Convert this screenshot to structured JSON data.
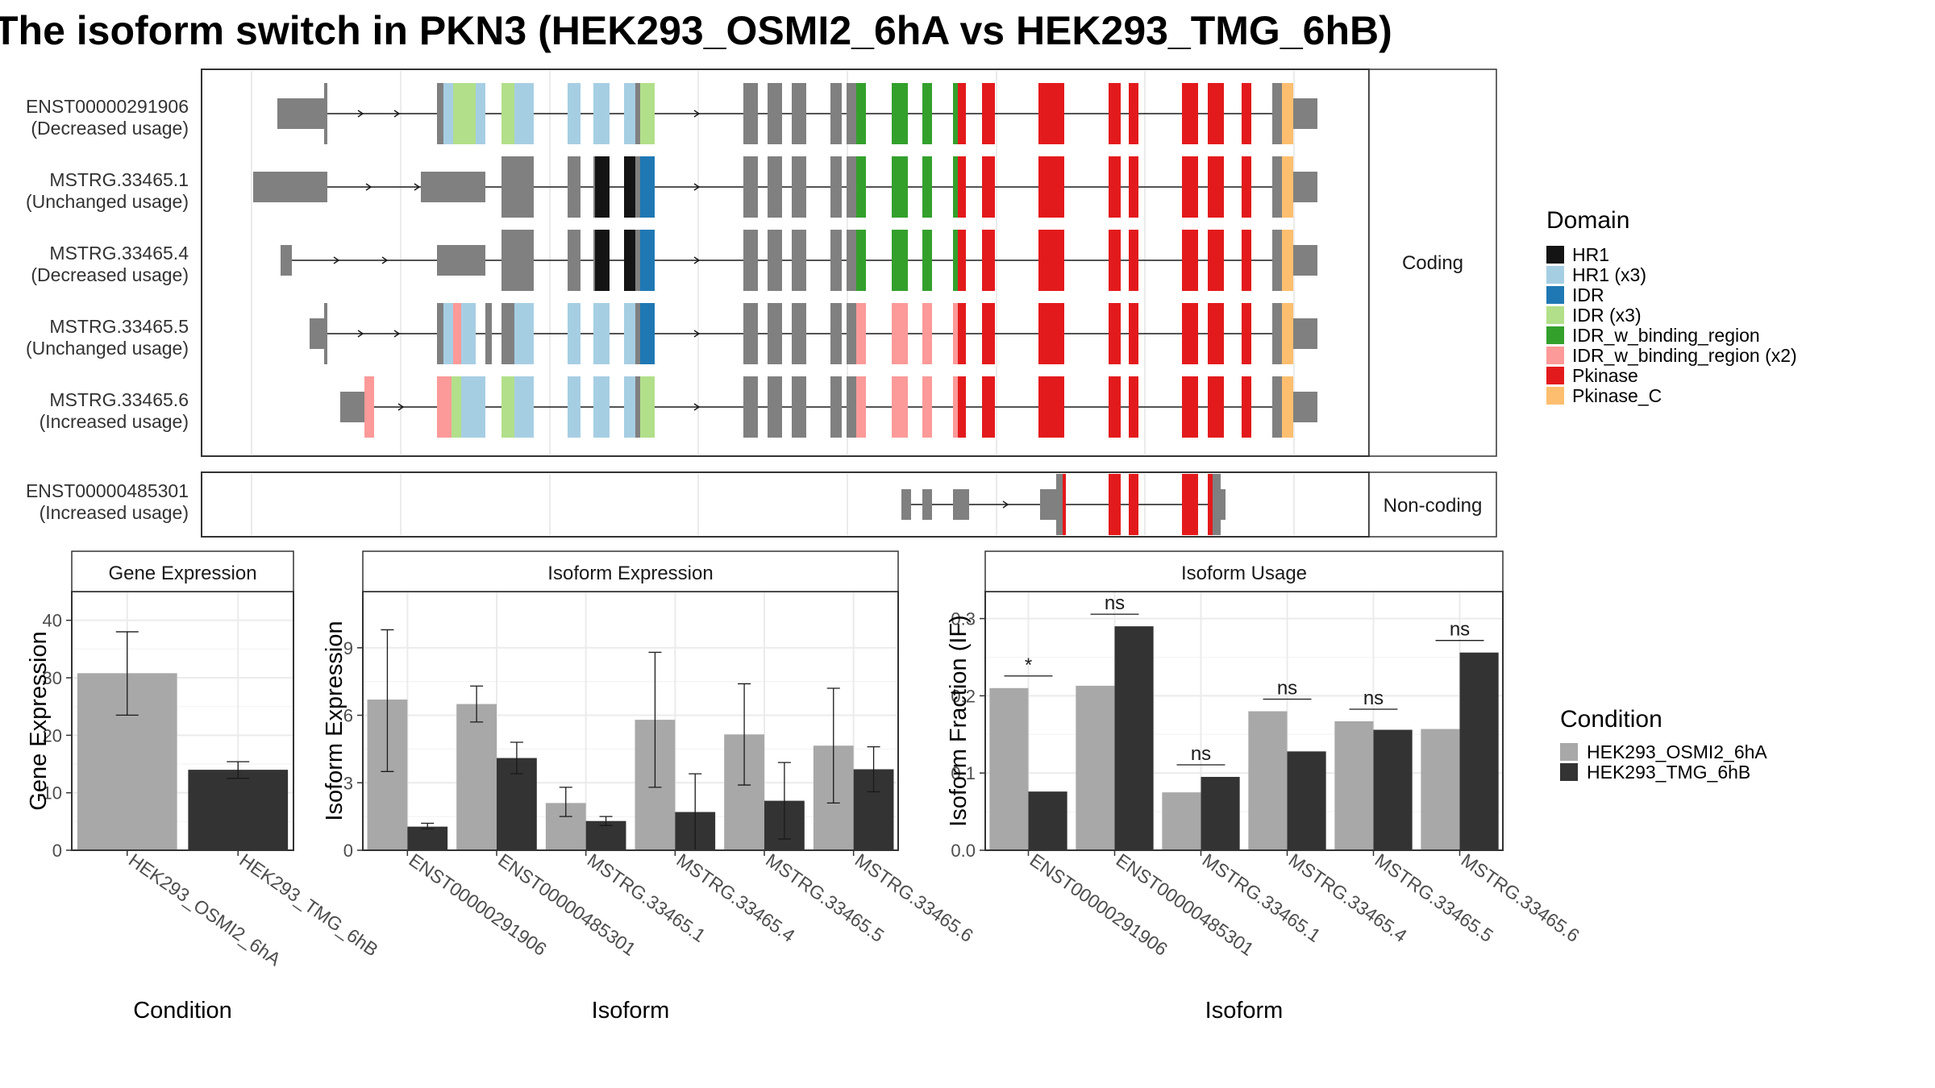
{
  "title": "The isoform switch in PKN3 (HEK293_OSMI2_6hA vs HEK293_TMG_6hB)",
  "colors": {
    "HR1": "#141414",
    "HR1 (x3)": "#a6cee3",
    "IDR": "#1f78b4",
    "IDR (x3)": "#b2df8a",
    "IDR_w_binding_region": "#33a02c",
    "IDR_w_binding_region (x2)": "#fb9a99",
    "Pkinase": "#e31a1c",
    "Pkinase_C": "#fdbf6f",
    "exon": "#808080",
    "cond1": "#a8a8a8",
    "cond2": "#333333",
    "panel_border": "#333333",
    "strip_bg": "#ffffff",
    "grid": "#ebebeb"
  },
  "structure": {
    "coding_label": "Coding",
    "noncoding_label": "Non-coding",
    "coding_isoforms": [
      {
        "id": "ENST00000291906",
        "usage": "(Decreased usage)"
      },
      {
        "id": "MSTRG.33465.1",
        "usage": "(Unchanged usage)"
      },
      {
        "id": "MSTRG.33465.4",
        "usage": "(Decreased usage)"
      },
      {
        "id": "MSTRG.33465.5",
        "usage": "(Unchanged usage)"
      },
      {
        "id": "MSTRG.33465.6",
        "usage": "(Increased usage)"
      }
    ],
    "noncoding_isoforms": [
      {
        "id": "ENST00000485301",
        "usage": "(Increased usage)"
      }
    ]
  },
  "legend_domain": {
    "title": "Domain",
    "items": [
      "HR1",
      "HR1 (x3)",
      "IDR",
      "IDR (x3)",
      "IDR_w_binding_region",
      "IDR_w_binding_region (x2)",
      "Pkinase",
      "Pkinase_C"
    ]
  },
  "legend_condition": {
    "title": "Condition",
    "items": [
      "HEK293_OSMI2_6hA",
      "HEK293_TMG_6hB"
    ]
  },
  "chart_data": [
    {
      "type": "bar",
      "title": "Gene Expression",
      "xlabel": "Condition",
      "ylabel": "Gene Expression",
      "categories": [
        "HEK293_OSMI2_6hA",
        "HEK293_TMG_6hB"
      ],
      "values": [
        30.8,
        14.0
      ],
      "err_low": [
        23.5,
        12.5
      ],
      "err_high": [
        38.0,
        15.4
      ],
      "ylim": [
        0,
        45
      ],
      "yticks": [
        0,
        10,
        20,
        30,
        40
      ]
    },
    {
      "type": "bar",
      "title": "Isoform Expression",
      "xlabel": "Isoform",
      "ylabel": "Isoform Expression",
      "categories": [
        "ENST00000291906",
        "ENST00000485301",
        "MSTRG.33465.1",
        "MSTRG.33465.4",
        "MSTRG.33465.5",
        "MSTRG.33465.6"
      ],
      "series": [
        {
          "name": "HEK293_OSMI2_6hA",
          "values": [
            6.7,
            6.5,
            2.1,
            5.8,
            5.15,
            4.65
          ],
          "err_low": [
            3.5,
            5.7,
            1.5,
            2.8,
            2.9,
            2.1
          ],
          "err_high": [
            9.8,
            7.3,
            2.8,
            8.8,
            7.4,
            7.2
          ]
        },
        {
          "name": "HEK293_TMG_6hB",
          "values": [
            1.05,
            4.1,
            1.3,
            1.7,
            2.2,
            3.6
          ],
          "err_low": [
            0.95,
            3.4,
            1.1,
            0.0,
            0.5,
            2.6
          ],
          "err_high": [
            1.2,
            4.8,
            1.5,
            3.4,
            3.9,
            4.6
          ]
        }
      ],
      "ylim": [
        0,
        11.5
      ],
      "yticks": [
        0,
        3,
        6,
        9
      ]
    },
    {
      "type": "bar",
      "title": "Isoform Usage",
      "xlabel": "Isoform",
      "ylabel": "Isoform Fraction (IF)",
      "categories": [
        "ENST00000291906",
        "ENST00000485301",
        "MSTRG.33465.1",
        "MSTRG.33465.4",
        "MSTRG.33465.5",
        "MSTRG.33465.6"
      ],
      "series": [
        {
          "name": "HEK293_OSMI2_6hA",
          "values": [
            0.21,
            0.213,
            0.075,
            0.18,
            0.167,
            0.157
          ]
        },
        {
          "name": "HEK293_TMG_6hB",
          "values": [
            0.076,
            0.29,
            0.095,
            0.128,
            0.156,
            0.256
          ]
        }
      ],
      "significance": [
        "*",
        "ns",
        "ns",
        "ns",
        "ns",
        "ns"
      ],
      "ylim": [
        0,
        0.335
      ],
      "yticks": [
        0.0,
        0.1,
        0.2,
        0.3
      ],
      "ytick_labels": [
        "0.0",
        "0.1",
        "0.2",
        "0.3"
      ]
    }
  ]
}
